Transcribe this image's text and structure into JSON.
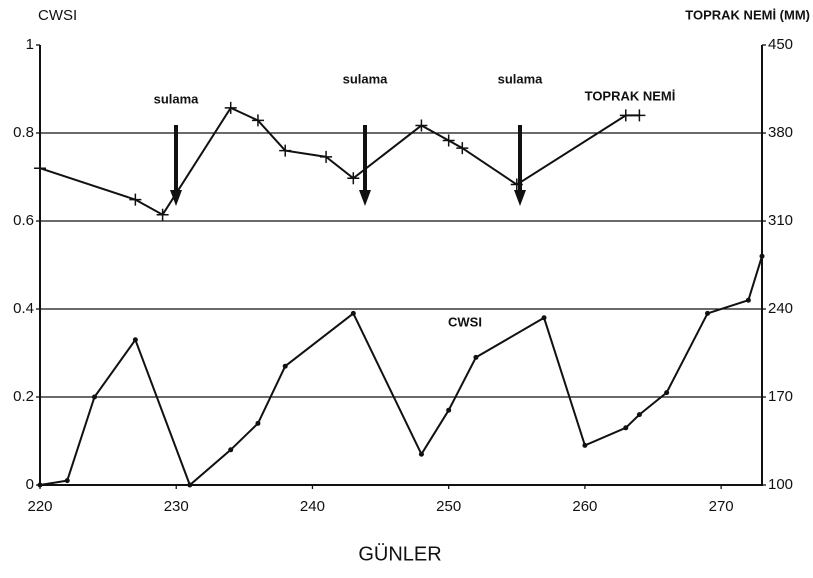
{
  "chart_data": {
    "type": "line",
    "y_label": "CWSI",
    "y2_label": "TOPRAK NEMİ (MM)",
    "x_label": "GÜNLER",
    "annotations": [
      "sulama",
      "sulama",
      "sulama",
      "TOPRAK NEMİ",
      "CWSI"
    ],
    "xlim": [
      220,
      273
    ],
    "xticks": [
      220,
      230,
      240,
      250,
      260,
      270
    ],
    "ylim": [
      0,
      1
    ],
    "yticks": [
      0,
      0.2,
      0.4,
      0.6,
      0.8,
      1
    ],
    "y2lim": [
      100,
      450
    ],
    "y2ticks": [
      100,
      170,
      240,
      310,
      380,
      450
    ],
    "grid": true,
    "series": [
      {
        "name": "CWSI",
        "color": "#111111",
        "axis": "y",
        "x": [
          220,
          222,
          224,
          227,
          231,
          234,
          236,
          238,
          243,
          248,
          250,
          252,
          257,
          260,
          263,
          264,
          266,
          269,
          272,
          273
        ],
        "values": [
          0,
          0.01,
          0.2,
          0.33,
          0,
          0.08,
          0.14,
          0.27,
          0.39,
          0.07,
          0.17,
          0.29,
          0.38,
          0.09,
          0.13,
          0.16,
          0.21,
          0.39,
          0.42,
          0.52
        ]
      },
      {
        "name": "TOPRAK NEMİ",
        "color": "#111111",
        "axis": "y2",
        "x": [
          220,
          227,
          229,
          234,
          236,
          238,
          241,
          243,
          248,
          250,
          251,
          255,
          263,
          264
        ],
        "values": [
          352,
          327,
          315,
          400,
          390,
          366,
          361,
          344,
          386,
          374,
          368,
          339,
          394,
          394
        ]
      }
    ]
  }
}
